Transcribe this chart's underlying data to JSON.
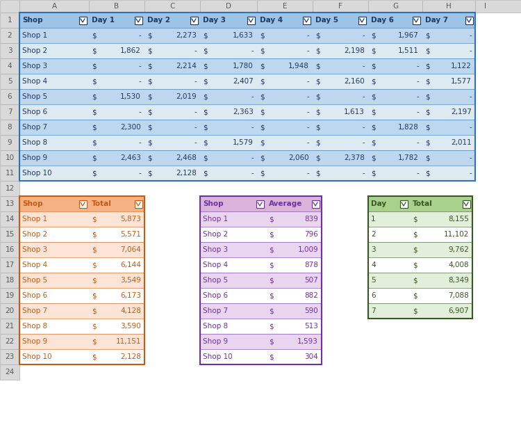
{
  "bg_color": "#ffffff",
  "table1": {
    "headers": [
      "Shop",
      "Day 1",
      "Day 2",
      "Day 3",
      "Day 4",
      "Day 5",
      "Day 6",
      "Day 7"
    ],
    "header_bg": "#9dc3e6",
    "header_text": "#1f3864",
    "row_bg_even": "#bdd7ee",
    "row_bg_odd": "#deeaf1",
    "text_color": "#1f3864",
    "border_color": "#2e74b5",
    "data": [
      [
        "Shop 1",
        "",
        "2,273",
        "1,633",
        "",
        "",
        "1,967",
        ""
      ],
      [
        "Shop 2",
        "1,862",
        "",
        "",
        "",
        "2,198",
        "1,511",
        ""
      ],
      [
        "Shop 3",
        "",
        "2,214",
        "1,780",
        "1,948",
        "",
        "",
        "1,122"
      ],
      [
        "Shop 4",
        "",
        "",
        "2,407",
        "",
        "2,160",
        "",
        "1,577"
      ],
      [
        "Shop 5",
        "1,530",
        "2,019",
        "",
        "",
        "",
        "",
        ""
      ],
      [
        "Shop 6",
        "",
        "",
        "2,363",
        "",
        "1,613",
        "",
        "2,197"
      ],
      [
        "Shop 7",
        "2,300",
        "",
        "",
        "",
        "",
        "1,828",
        ""
      ],
      [
        "Shop 8",
        "",
        "",
        "1,579",
        "",
        "",
        "",
        "2,011"
      ],
      [
        "Shop 9",
        "2,463",
        "2,468",
        "",
        "2,060",
        "2,378",
        "1,782",
        ""
      ],
      [
        "Shop 10",
        "",
        "2,128",
        "",
        "",
        "",
        "",
        ""
      ]
    ]
  },
  "table2": {
    "headers": [
      "Shop",
      "Total"
    ],
    "header_bg": "#f4b183",
    "header_text": "#c55a11",
    "row_bg_even": "#fce4d6",
    "row_bg_odd": "#ffffff",
    "text_color": "#c55a11",
    "border_color": "#c55a11",
    "data": [
      [
        "Shop 1",
        "5,873"
      ],
      [
        "Shop 2",
        "5,571"
      ],
      [
        "Shop 3",
        "7,064"
      ],
      [
        "Shop 4",
        "6,144"
      ],
      [
        "Shop 5",
        "3,549"
      ],
      [
        "Shop 6",
        "6,173"
      ],
      [
        "Shop 7",
        "4,128"
      ],
      [
        "Shop 8",
        "3,590"
      ],
      [
        "Shop 9",
        "11,151"
      ],
      [
        "Shop 10",
        "2,128"
      ]
    ]
  },
  "table3": {
    "headers": [
      "Shop",
      "Average"
    ],
    "header_bg": "#d9b3d9",
    "header_text": "#7030a0",
    "row_bg_even": "#e9d5f0",
    "row_bg_odd": "#ffffff",
    "text_color": "#7030a0",
    "border_color": "#7030a0",
    "data": [
      [
        "Shop 1",
        "839"
      ],
      [
        "Shop 2",
        "796"
      ],
      [
        "Shop 3",
        "1,009"
      ],
      [
        "Shop 4",
        "878"
      ],
      [
        "Shop 5",
        "507"
      ],
      [
        "Shop 6",
        "882"
      ],
      [
        "Shop 7",
        "590"
      ],
      [
        "Shop 8",
        "513"
      ],
      [
        "Shop 9",
        "1,593"
      ],
      [
        "Shop 10",
        "304"
      ]
    ]
  },
  "table4": {
    "headers": [
      "Day",
      "Total"
    ],
    "header_bg": "#a9d18e",
    "header_text": "#375623",
    "row_bg_even": "#e2efda",
    "row_bg_odd": "#ffffff",
    "text_color": "#375623",
    "border_color": "#375623",
    "data": [
      [
        "1",
        "8,155"
      ],
      [
        "2",
        "11,102"
      ],
      [
        "3",
        "9,762"
      ],
      [
        "4",
        "4,008"
      ],
      [
        "5",
        "8,349"
      ],
      [
        "6",
        "7,088"
      ],
      [
        "7",
        "6,907"
      ]
    ]
  },
  "col_labels": [
    "A",
    "B",
    "C",
    "D",
    "E",
    "F",
    "G",
    "H",
    "I"
  ],
  "row_labels": [
    "1",
    "2",
    "3",
    "4",
    "5",
    "6",
    "7",
    "8",
    "9",
    "10",
    "11",
    "12",
    "13",
    "14",
    "15",
    "16",
    "17",
    "18",
    "19",
    "20",
    "21",
    "22",
    "23",
    "24"
  ],
  "excel_header_bg": "#d9d9d9",
  "excel_header_text": "#595959",
  "excel_border": "#b0b0b0"
}
